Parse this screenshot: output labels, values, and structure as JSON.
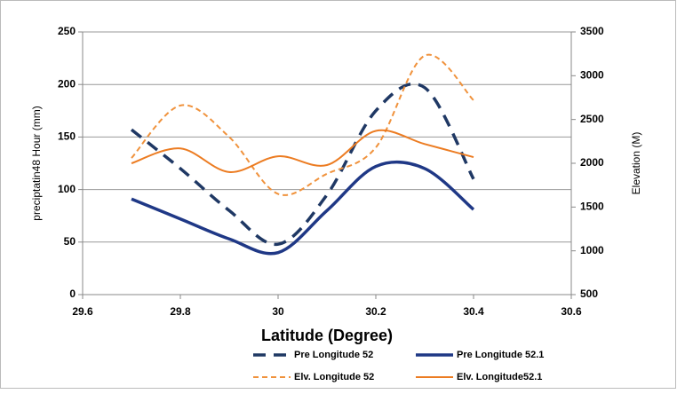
{
  "chart_data": {
    "type": "line",
    "x_label": "Latitude (Degree)",
    "y_label": "preciptatin48 Hour (mm)",
    "y2_label": "Elevation (M)",
    "x": [
      29.7,
      29.8,
      29.9,
      30,
      30.1,
      30.2,
      30.3,
      30.4
    ],
    "xlim": [
      29.6,
      30.6
    ],
    "xticks": [
      29.6,
      29.8,
      30,
      30.2,
      30.4,
      30.6
    ],
    "ylim": [
      0,
      250
    ],
    "yticks": [
      0,
      50,
      100,
      150,
      200,
      250
    ],
    "y2lim": [
      500,
      3500
    ],
    "y2ticks": [
      500,
      1000,
      1500,
      2000,
      2500,
      3000,
      3500
    ],
    "grid": true,
    "legend": "bottom",
    "series": [
      {
        "name": "Pre Longitude 52",
        "color": "#1f3864",
        "dashed": true,
        "values": [
          157,
          120,
          80,
          48,
          95,
          175,
          197,
          110
        ]
      },
      {
        "name": "Pre Longitude 52.1",
        "color": "#1f3886",
        "dashed": false,
        "values": [
          91,
          72,
          53,
          40,
          80,
          122,
          120,
          81
        ]
      },
      {
        "name": "Elv. Longitude 52",
        "color": "#f0923c",
        "dashed": true,
        "axis": "y2",
        "values": [
          2060,
          2660,
          2300,
          1650,
          1880,
          2180,
          3230,
          2720
        ]
      },
      {
        "name": "Elv. Longitude52.1",
        "color": "#ec7c22",
        "dashed": false,
        "axis": "y2",
        "values": [
          2000,
          2170,
          1900,
          2080,
          1980,
          2370,
          2220,
          2070
        ]
      }
    ]
  }
}
